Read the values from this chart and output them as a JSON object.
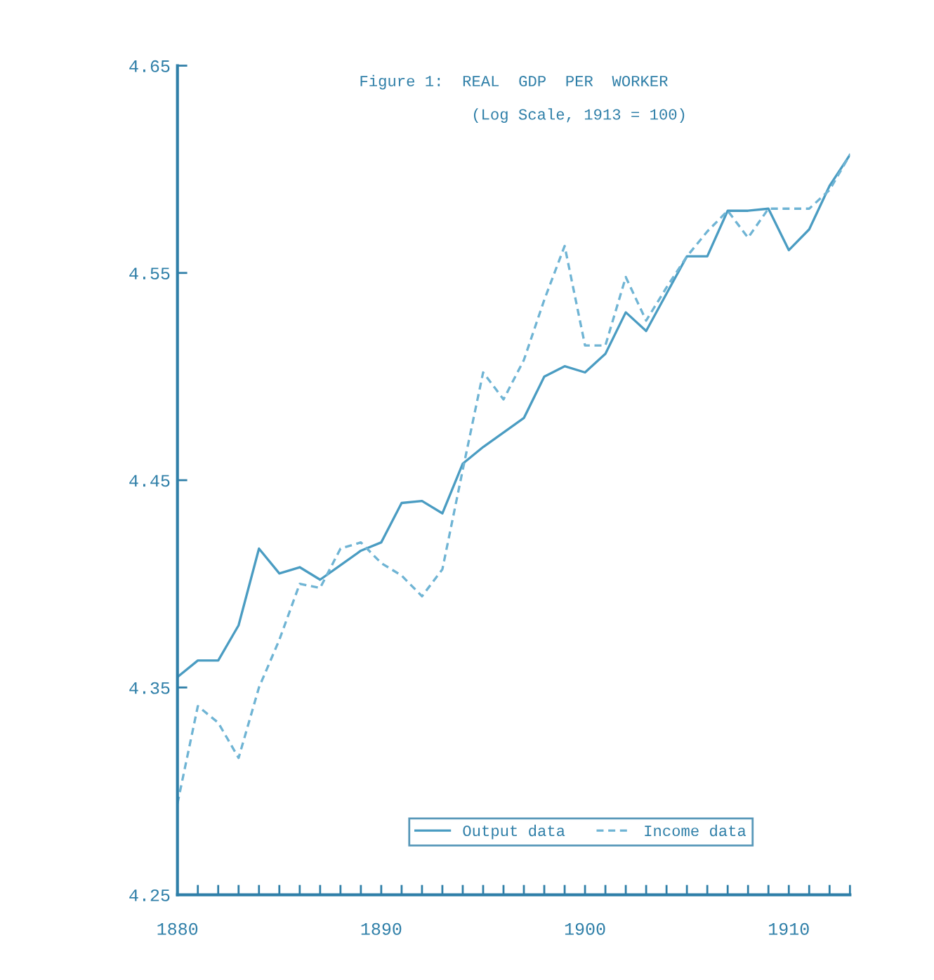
{
  "chart_data": {
    "type": "line",
    "title": "Figure 1:  REAL  GDP  PER  WORKER",
    "subtitle": "(Log Scale, 1913 = 100)",
    "x": [
      1880,
      1881,
      1882,
      1883,
      1884,
      1885,
      1886,
      1887,
      1888,
      1889,
      1890,
      1891,
      1892,
      1893,
      1894,
      1895,
      1896,
      1897,
      1898,
      1899,
      1900,
      1901,
      1902,
      1903,
      1904,
      1905,
      1906,
      1907,
      1908,
      1909,
      1910,
      1911,
      1912,
      1913
    ],
    "series": [
      {
        "name": "Output data",
        "color": "#4a9cc2",
        "line_style": "solid",
        "values": [
          4.355,
          4.363,
          4.363,
          4.38,
          4.417,
          4.405,
          4.408,
          4.402,
          4.409,
          4.416,
          4.42,
          4.439,
          4.44,
          4.434,
          4.458,
          4.466,
          4.473,
          4.48,
          4.5,
          4.505,
          4.502,
          4.511,
          4.531,
          4.522,
          4.54,
          4.558,
          4.558,
          4.58,
          4.58,
          4.581,
          4.561,
          4.571,
          4.592,
          4.607
        ]
      },
      {
        "name": "Income data",
        "color": "#6fb4d4",
        "line_style": "dashed",
        "values": [
          4.294,
          4.341,
          4.333,
          4.316,
          4.35,
          4.373,
          4.4,
          4.398,
          4.417,
          4.42,
          4.41,
          4.404,
          4.394,
          4.407,
          4.455,
          4.502,
          4.489,
          4.508,
          4.537,
          4.563,
          4.515,
          4.515,
          4.548,
          4.527,
          4.543,
          4.558,
          4.57,
          4.58,
          4.567,
          4.581,
          4.581,
          4.581,
          4.59,
          4.607
        ]
      }
    ],
    "xlim": [
      1880,
      1913
    ],
    "xticks": [
      1880,
      {
        "value": 1881,
        "label": null
      },
      {
        "value": 1882,
        "label": null
      },
      {
        "value": 1883,
        "label": null
      },
      {
        "value": 1884,
        "label": null
      },
      {
        "value": 1885,
        "label": null
      },
      {
        "value": 1886,
        "label": null
      },
      {
        "value": 1887,
        "label": null
      },
      {
        "value": 1888,
        "label": null
      },
      {
        "value": 1889,
        "label": null
      },
      1890,
      {
        "value": 1891,
        "label": null
      },
      {
        "value": 1892,
        "label": null
      },
      {
        "value": 1893,
        "label": null
      },
      {
        "value": 1894,
        "label": null
      },
      {
        "value": 1895,
        "label": null
      },
      {
        "value": 1896,
        "label": null
      },
      {
        "value": 1897,
        "label": null
      },
      {
        "value": 1898,
        "label": null
      },
      {
        "value": 1899,
        "label": null
      },
      1900,
      {
        "value": 1901,
        "label": null
      },
      {
        "value": 1902,
        "label": null
      },
      {
        "value": 1903,
        "label": null
      },
      {
        "value": 1904,
        "label": null
      },
      {
        "value": 1905,
        "label": null
      },
      {
        "value": 1906,
        "label": null
      },
      {
        "value": 1907,
        "label": null
      },
      {
        "value": 1908,
        "label": null
      },
      {
        "value": 1909,
        "label": null
      },
      1910,
      {
        "value": 1911,
        "label": null
      },
      {
        "value": 1912,
        "label": null
      },
      {
        "value": 1913,
        "label": null
      }
    ],
    "ylim": [
      4.25,
      4.65
    ],
    "yticks": [
      4.25,
      4.35,
      4.45,
      4.55,
      4.65
    ],
    "grid": false,
    "legend": "bottom",
    "marker": "none"
  }
}
